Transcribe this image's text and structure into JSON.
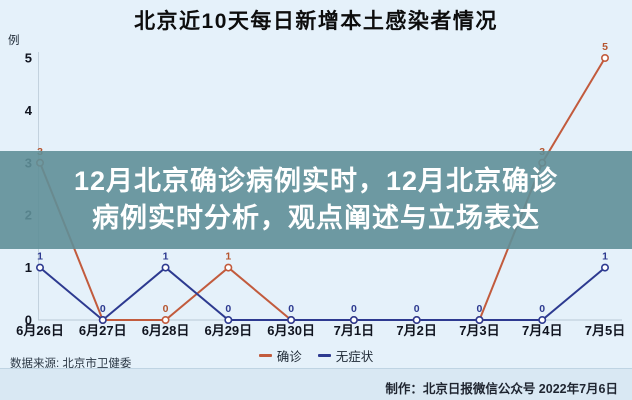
{
  "overlay": {
    "line1": "12月北京确诊病例实时，12月北京确诊",
    "line2": "病例实时分析，观点阐述与立场表达"
  },
  "chart_data": {
    "type": "line",
    "title": "北京近10天每日新增本土感染者情况",
    "unit_label": "例",
    "categories": [
      "6月26日",
      "6月27日",
      "6月28日",
      "6月29日",
      "6月30日",
      "7月1日",
      "7月2日",
      "7月3日",
      "7月4日",
      "7月5日"
    ],
    "series": [
      {
        "name": "确诊",
        "color": "#c25b3d",
        "label_color": "#b5552f",
        "values": [
          3,
          0,
          0,
          1,
          0,
          0,
          0,
          0,
          3,
          5
        ]
      },
      {
        "name": "无症状",
        "color": "#2d3a90",
        "label_color": "#2d3a90",
        "values": [
          1,
          0,
          1,
          0,
          0,
          0,
          0,
          0,
          0,
          1
        ]
      }
    ],
    "yticks": [
      0,
      1,
      2,
      3,
      4,
      5
    ],
    "ylim": [
      0,
      5
    ],
    "grid": "axis-only",
    "legend_position": "bottom-center",
    "point_labels": true
  },
  "footer": {
    "source": "数据来源: 北京市卫健委",
    "credit": "制作：北京日报微信公众号  2022年7月6日"
  },
  "colors": {
    "background": "#e5f1fa",
    "banner": "#5f8f98",
    "banner_opacity": "0.9",
    "footer_band": "#d9e8f3",
    "axis": "#c3d2de"
  }
}
